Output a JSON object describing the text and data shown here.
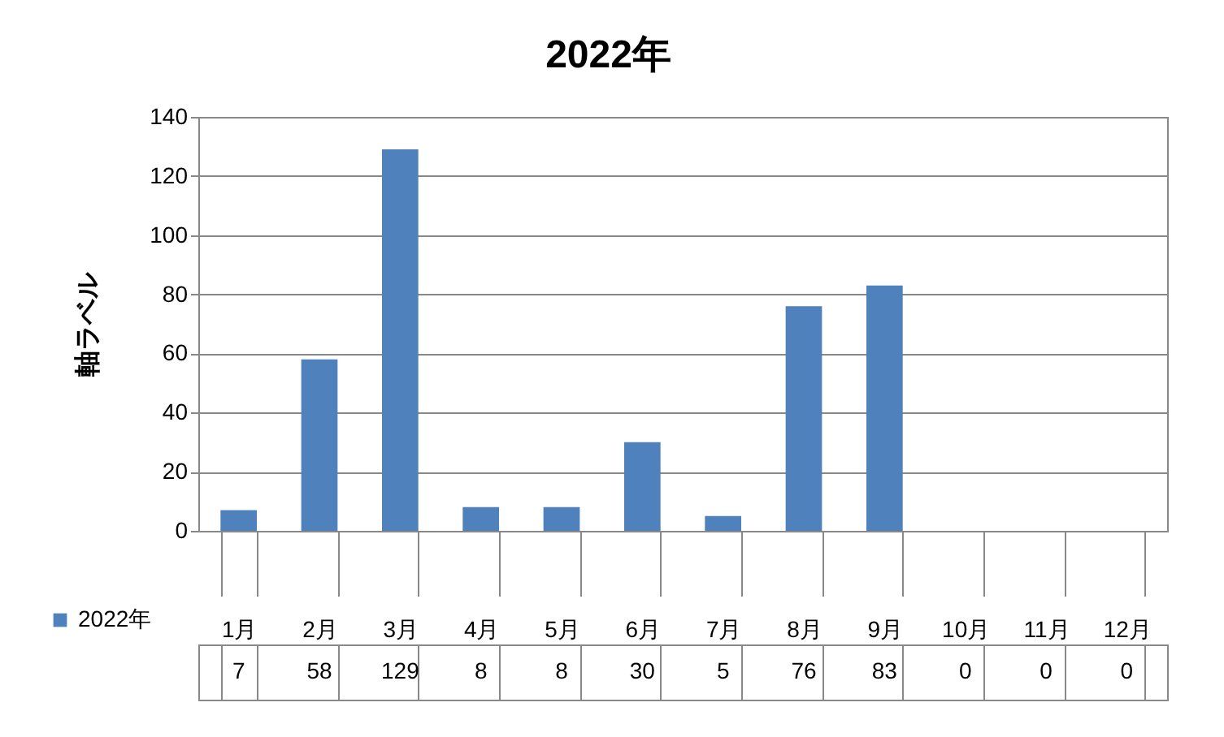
{
  "chart_data": {
    "type": "bar",
    "title": "2022年",
    "ylabel": "軸ラベル",
    "categories": [
      "1月",
      "2月",
      "3月",
      "4月",
      "5月",
      "6月",
      "7月",
      "8月",
      "9月",
      "10月",
      "11月",
      "12月"
    ],
    "series": [
      {
        "name": "2022年",
        "color": "#4f81bd",
        "values": [
          7,
          58,
          129,
          8,
          8,
          30,
          5,
          76,
          83,
          0,
          0,
          0
        ]
      }
    ],
    "ylim": [
      0,
      140
    ],
    "yticks": [
      0,
      20,
      40,
      60,
      80,
      100,
      120,
      140
    ],
    "grid": "y",
    "legend": "bottom",
    "data_labels": true
  }
}
